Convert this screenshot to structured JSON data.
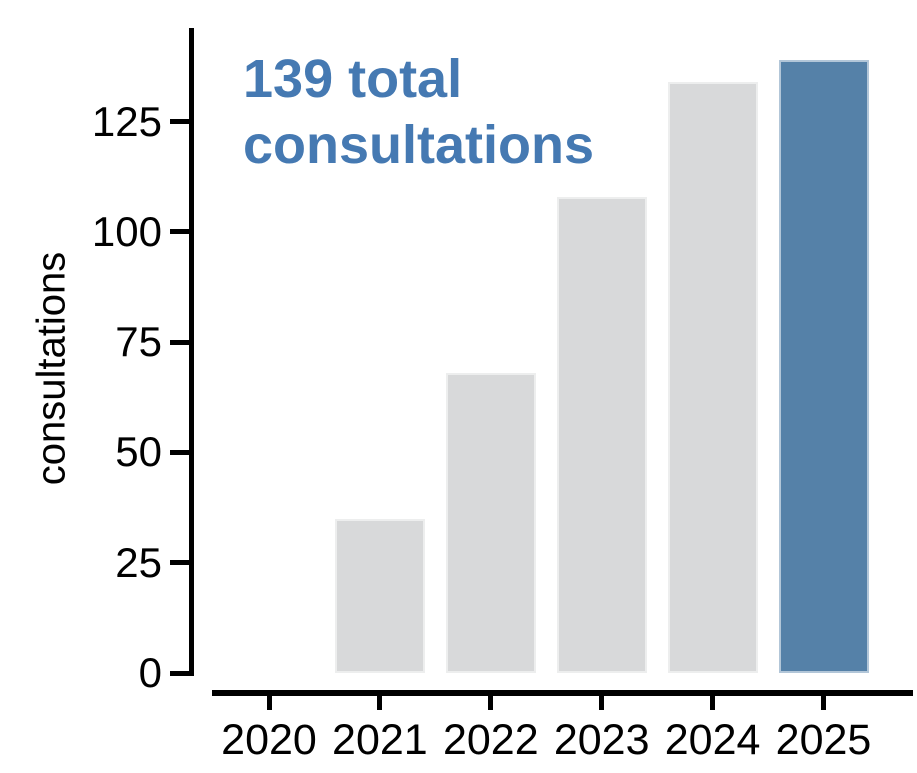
{
  "chart_data": {
    "type": "bar",
    "title": "",
    "categories": [
      "2020",
      "2021",
      "2022",
      "2023",
      "2024",
      "2025"
    ],
    "values": [
      0,
      35,
      68,
      108,
      134,
      139
    ],
    "xlabel": "",
    "ylabel": "consultations",
    "yticks": [
      0,
      25,
      50,
      75,
      100,
      125
    ],
    "ylim": [
      0,
      146
    ],
    "grid": false,
    "legend": false,
    "bar_color_default": "#d8d9da",
    "bar_color_highlight": "#5581a8",
    "highlight_category": "2025",
    "annotation": {
      "lines": [
        "139 total",
        "consultations"
      ],
      "color": "#4579b2"
    },
    "axis_color": "#000000"
  }
}
